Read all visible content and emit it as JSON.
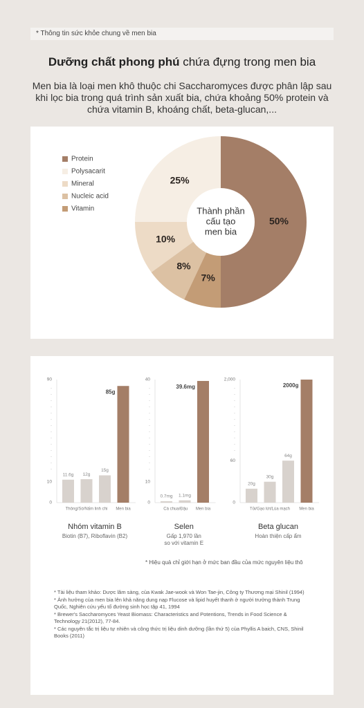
{
  "header": {
    "note": "* Thông tin sức khỏe chung về men bia",
    "title_bold": "Dưỡng chất phong phú",
    "title_rest": "chứa đựng trong men bia",
    "intro": "Men bia là loại men khô thuộc chi Saccharomyces được phân lập sau khi lọc bia trong quá trình sản xuất bia, chứa khoảng 50% protein và chứa vitamin B, khoáng chất, beta-glucan,..."
  },
  "chart_data": [
    {
      "type": "donut",
      "center_label": [
        "Thành phần",
        "cấu tạo",
        "men bia"
      ],
      "categories": [
        "Protein",
        "Polysacarit",
        "Mineral",
        "Nucleic acid",
        "Vitamin"
      ],
      "values": [
        50,
        25,
        10,
        8,
        7
      ],
      "value_labels": [
        "50%",
        "25%",
        "10%",
        "8%",
        "7%"
      ],
      "colors": [
        "#a47e67",
        "#f6eee4",
        "#eddbc6",
        "#dcc1a3",
        "#c39c76"
      ],
      "legend": "left"
    },
    {
      "type": "bar",
      "title": "Nhóm vitamin B",
      "subtitle": [
        "Biotin (B7), Riboflavin (B2)"
      ],
      "categories": [
        "Thông/Sò/Nấm linh chi",
        null,
        null,
        "Men bia"
      ],
      "values": [
        11.6,
        12,
        15,
        85
      ],
      "value_labels": [
        "11.6g",
        "12g",
        "15g",
        "85g"
      ],
      "colors": [
        "#d8d2cd",
        "#d8d2cd",
        "#d8d2cd",
        "#a47e67"
      ],
      "ylim": [
        0,
        90
      ],
      "yticks": [
        0,
        10,
        90
      ]
    },
    {
      "type": "bar",
      "title": "Selen",
      "subtitle": [
        "Gấp 1,970 lần",
        "so với vitamin E"
      ],
      "categories": [
        "Cà chua/Đậu",
        null,
        "Men bia"
      ],
      "values": [
        0.7,
        1.1,
        39.6
      ],
      "value_labels": [
        "0.7mg",
        "1.1mg",
        "39.6mg"
      ],
      "colors": [
        "#d8d2cd",
        "#d8d2cd",
        "#a47e67"
      ],
      "ylim": [
        0,
        40
      ],
      "yticks": [
        0,
        10,
        40
      ]
    },
    {
      "type": "bar",
      "title": "Beta glucan",
      "subtitle": [
        "Hoàn thiện cấp ẩm"
      ],
      "categories": [
        "Tỏi/Gạo lứt/Lúa mạch",
        null,
        null,
        "Men bia"
      ],
      "values": [
        20,
        30,
        64,
        2000
      ],
      "value_labels": [
        "20g",
        "30g",
        "64g",
        "2000g"
      ],
      "colors": [
        "#d8d2cd",
        "#d8d2cd",
        "#d8d2cd",
        "#a47e67"
      ],
      "ylim": [
        0,
        2000
      ],
      "yticks": [
        0,
        60,
        {
          "value": 2000,
          "label": "2,000"
        }
      ]
    }
  ],
  "footnote": "* Hiệu quả chỉ giới hạn ở mức ban đầu của mức nguyên liệu thô",
  "references": [
    "* Tài liệu tham khảo: Dược lâm sàng, của Kwak Jae-wook và Won Tae-jin, Công ty Thương mại Shinil (1994)",
    "* Ảnh hưởng của men bia lên khả năng dung nạp Flucose và lipid huyết thanh ở người trưởng thành Trung Quốc, Nghiên cứu yếu tố đường sinh học tập 41, 1994",
    "* Brewer's Saccharomyces Yeast Biomass: Characteristics and Potentions, Trends in Food Science & Technology 21(2012), 77-84.",
    "* Các nguyên tắc trị liệu tự nhiên và công thức trị liệu dinh dưỡng (lần thứ 5) của Phyllis A baich, CNS, Shinil Books (2011)"
  ]
}
